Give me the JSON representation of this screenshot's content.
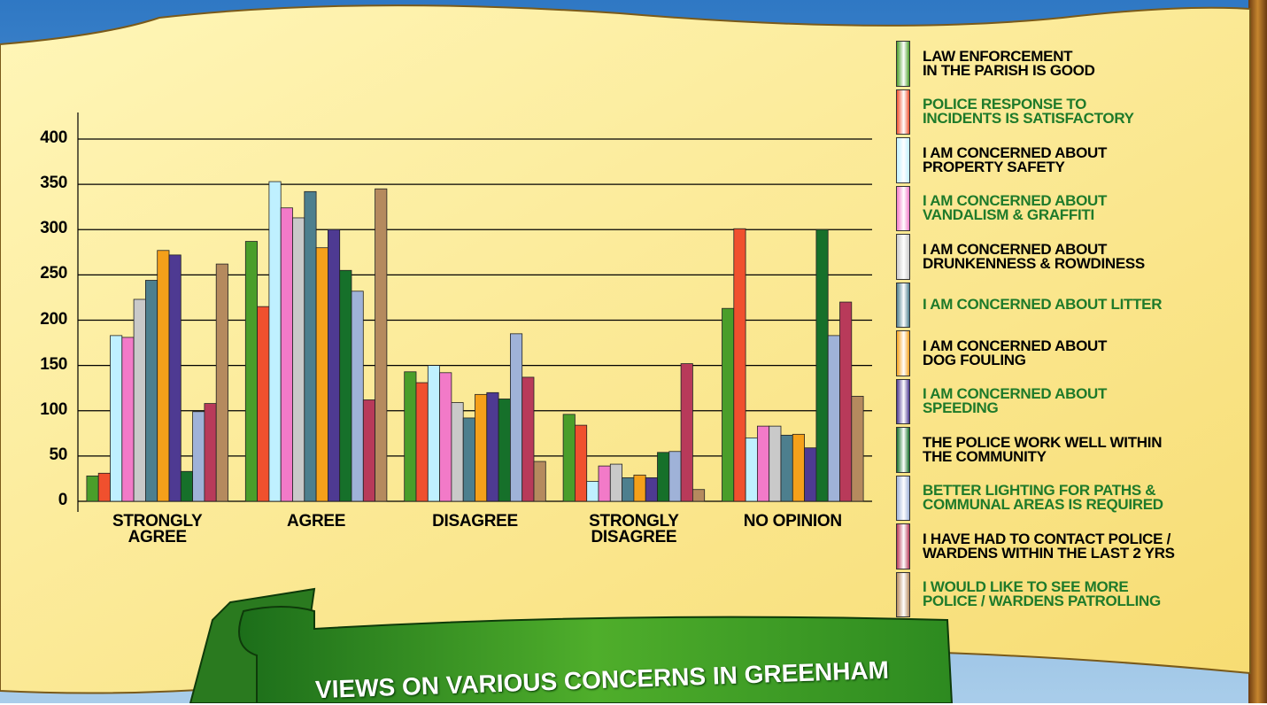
{
  "chart_data": {
    "type": "bar",
    "title": "VIEWS ON VARIOUS CONCERNS IN GREENHAM",
    "categories": [
      "STRONGLY\nAGREE",
      "AGREE",
      "DISAGREE",
      "STRONGLY\nDISAGREE",
      "NO OPINION"
    ],
    "ylim": [
      0,
      400
    ],
    "yticks": [
      0,
      50,
      100,
      150,
      200,
      250,
      300,
      350,
      400
    ],
    "grid": true,
    "series": [
      {
        "name": "LAW ENFORCEMENT\nIN THE PARISH IS GOOD",
        "color": "#4a9e2a",
        "text_color": "#000000",
        "values": [
          28,
          287,
          143,
          96,
          213
        ]
      },
      {
        "name": "POLICE RESPONSE TO\nINCIDENTS IS SATISFACTORY",
        "color": "#f0502e",
        "text_color": "#1e7a2a",
        "values": [
          31,
          215,
          131,
          84,
          301
        ]
      },
      {
        "name": "I AM CONCERNED ABOUT\nPROPERTY SAFETY",
        "color": "#bff0ff",
        "text_color": "#000000",
        "values": [
          183,
          353,
          150,
          22,
          70
        ]
      },
      {
        "name": "I AM CONCERNED ABOUT\nVANDALISM & GRAFFITI",
        "color": "#f27ac8",
        "text_color": "#1e7a2a",
        "values": [
          181,
          324,
          142,
          39,
          83
        ]
      },
      {
        "name": "I AM CONCERNED ABOUT\nDRUNKENNESS & ROWDINESS",
        "color": "#c9c9c9",
        "text_color": "#000000",
        "values": [
          223,
          313,
          109,
          41,
          83
        ]
      },
      {
        "name": "I AM CONCERNED ABOUT LITTER",
        "color": "#4d7f8e",
        "text_color": "#1e7a2a",
        "values": [
          244,
          342,
          92,
          26,
          73
        ]
      },
      {
        "name": "I AM CONCERNED ABOUT\nDOG FOULING",
        "color": "#f5a01a",
        "text_color": "#000000",
        "values": [
          277,
          280,
          118,
          29,
          74
        ]
      },
      {
        "name": "I AM CONCERNED ABOUT\nSPEEDING",
        "color": "#4e3a92",
        "text_color": "#1e7a2a",
        "values": [
          272,
          300,
          120,
          26,
          59
        ]
      },
      {
        "name": "THE POLICE WORK WELL WITHIN\nTHE COMMUNITY",
        "color": "#16702a",
        "text_color": "#000000",
        "values": [
          33,
          255,
          113,
          54,
          300
        ]
      },
      {
        "name": "BETTER LIGHTING FOR PATHS &\nCOMMUNAL AREAS IS REQUIRED",
        "color": "#9fb2d8",
        "text_color": "#1e7a2a",
        "values": [
          99,
          232,
          185,
          55,
          183
        ]
      },
      {
        "name": "I HAVE HAD TO CONTACT POLICE /\nWARDENS WITHIN THE LAST 2 YRS",
        "color": "#b83a5a",
        "text_color": "#000000",
        "values": [
          108,
          112,
          137,
          152,
          220
        ]
      },
      {
        "name": "I WOULD LIKE TO SEE MORE\nPOLICE / WARDENS PATROLLING",
        "color": "#b58a5e",
        "text_color": "#1e7a2a",
        "values": [
          262,
          345,
          44,
          13,
          116
        ]
      }
    ]
  }
}
